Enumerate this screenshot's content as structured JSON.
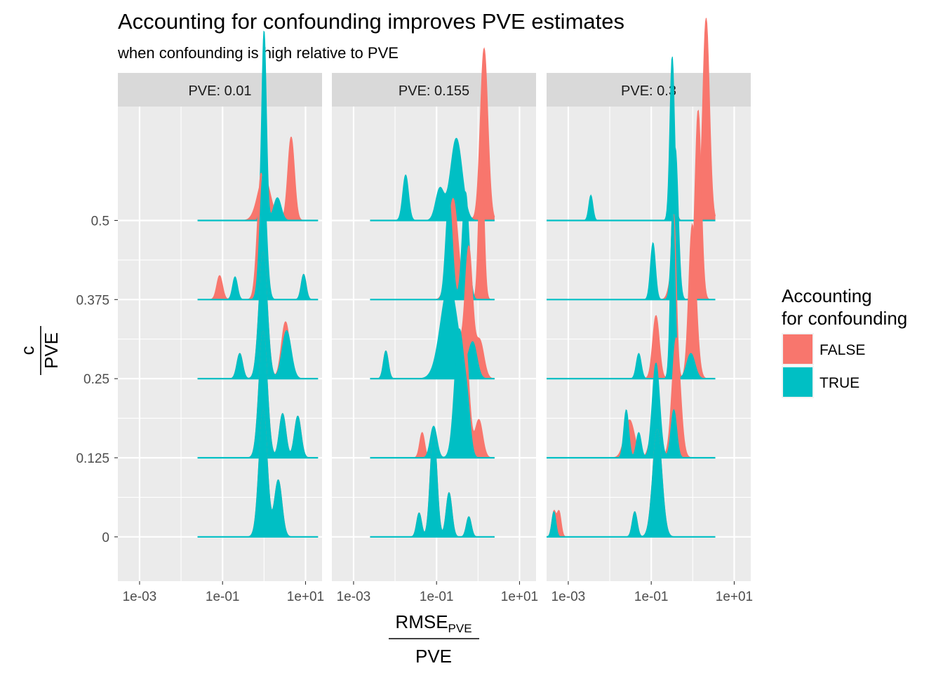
{
  "chart_data": {
    "type": "area",
    "subtype": "ridgeline-density",
    "title": "Accounting for confounding improves PVE estimates",
    "subtitle": "when confounding is high relative to PVE",
    "xlabel": {
      "numerator_main": "RMSE",
      "numerator_sub": "PVE",
      "denominator": "PVE"
    },
    "ylabel": {
      "numerator": "c",
      "denominator": "PVE"
    },
    "x_scale": "log10",
    "x_range": [
      0.0003,
      25
    ],
    "x_ticks": [
      0.001,
      0.1,
      10
    ],
    "x_tick_labels": [
      "1e-03",
      "1e-01",
      "1e+01"
    ],
    "y_range": [
      -0.07,
      0.68
    ],
    "y_ticks": [
      0,
      0.125,
      0.25,
      0.375,
      0.5
    ],
    "y_tick_labels": [
      "0",
      "0.125",
      "0.25",
      "0.375",
      "0.5"
    ],
    "ridge_height": 0.2,
    "grid": true,
    "legend": {
      "title_line1": "Accounting",
      "title_line2": "for confounding",
      "position": "right",
      "entries": [
        {
          "label": "FALSE",
          "color": "#F8766D"
        },
        {
          "label": "TRUE",
          "color": "#00BFC4"
        }
      ]
    },
    "facets": [
      {
        "label": "PVE: 0.01",
        "ridges": [
          {
            "y": 0,
            "x_min": 0.025,
            "x_max": 20,
            "FALSE": [
              [
                0.95,
                1,
                0.1
              ],
              [
                2.2,
                0.45,
                0.09
              ]
            ],
            "TRUE": [
              [
                0.95,
                1,
                0.1
              ],
              [
                2.2,
                0.45,
                0.09
              ]
            ]
          },
          {
            "y": 0.125,
            "x_min": 0.025,
            "x_max": 20,
            "FALSE": [
              [
                0.95,
                1,
                0.1
              ],
              [
                2.8,
                0.35,
                0.08
              ],
              [
                6.5,
                0.33,
                0.08
              ]
            ],
            "TRUE": [
              [
                0.95,
                1,
                0.1
              ],
              [
                2.8,
                0.35,
                0.08
              ],
              [
                6.5,
                0.33,
                0.08
              ]
            ]
          },
          {
            "y": 0.25,
            "x_min": 0.025,
            "x_max": 20,
            "FALSE": [
              [
                0.95,
                1,
                0.1
              ],
              [
                0.26,
                0.2,
                0.07
              ],
              [
                3.3,
                0.45,
                0.1
              ]
            ],
            "TRUE": [
              [
                0.95,
                1,
                0.1
              ],
              [
                0.26,
                0.2,
                0.07
              ],
              [
                3.5,
                0.38,
                0.11
              ]
            ]
          },
          {
            "y": 0.375,
            "x_min": 0.025,
            "x_max": 20,
            "FALSE": [
              [
                0.85,
                1,
                0.09
              ],
              [
                0.085,
                0.19,
                0.07
              ],
              [
                0.2,
                0.17,
                0.06
              ],
              [
                9,
                0.2,
                0.06
              ]
            ],
            "TRUE": [
              [
                0.95,
                1,
                0.08
              ],
              [
                0.2,
                0.18,
                0.06
              ],
              [
                9,
                0.2,
                0.06
              ]
            ]
          },
          {
            "y": 0.5,
            "x_min": 0.025,
            "x_max": 20,
            "FALSE": [
              [
                1.0,
                0.35,
                0.15
              ],
              [
                4.5,
                0.66,
                0.08
              ]
            ],
            "TRUE": [
              [
                1.0,
                1.5,
                0.055
              ],
              [
                2.1,
                0.18,
                0.09
              ]
            ]
          }
        ]
      },
      {
        "label": "PVE: 0.155",
        "ridges": [
          {
            "y": 0,
            "x_min": 0.0025,
            "x_max": 2.5,
            "FALSE": [
              [
                0.085,
                0.85,
                0.08
              ],
              [
                0.038,
                0.19,
                0.06
              ],
              [
                0.2,
                0.35,
                0.07
              ],
              [
                0.6,
                0.16,
                0.06
              ]
            ],
            "TRUE": [
              [
                0.085,
                0.85,
                0.08
              ],
              [
                0.038,
                0.19,
                0.06
              ],
              [
                0.2,
                0.35,
                0.07
              ],
              [
                0.6,
                0.16,
                0.06
              ]
            ]
          },
          {
            "y": 0.125,
            "x_min": 0.0025,
            "x_max": 2.5,
            "FALSE": [
              [
                0.045,
                0.2,
                0.06
              ],
              [
                0.48,
                0.95,
                0.1
              ],
              [
                1.05,
                0.3,
                0.09
              ]
            ],
            "TRUE": [
              [
                0.085,
                0.25,
                0.08
              ],
              [
                0.35,
                1.0,
                0.11
              ],
              [
                0.55,
                0.35,
                0.08
              ]
            ]
          },
          {
            "y": 0.25,
            "x_min": 0.0025,
            "x_max": 2.5,
            "FALSE": [
              [
                0.006,
                0.22,
                0.06
              ],
              [
                0.2,
                0.7,
                0.2
              ],
              [
                0.6,
                1.0,
                0.09
              ],
              [
                1.1,
                0.3,
                0.1
              ]
            ],
            "TRUE": [
              [
                0.006,
                0.22,
                0.06
              ],
              [
                0.2,
                0.75,
                0.2
              ],
              [
                0.75,
                0.28,
                0.1
              ]
            ]
          },
          {
            "y": 0.375,
            "x_min": 0.0025,
            "x_max": 2.5,
            "FALSE": [
              [
                0.25,
                0.8,
                0.12
              ],
              [
                1.2,
                1.3,
                0.06
              ]
            ],
            "TRUE": [
              [
                0.2,
                0.8,
                0.08
              ],
              [
                0.5,
                0.85,
                0.08
              ]
            ]
          },
          {
            "y": 0.5,
            "x_min": 0.0025,
            "x_max": 2.5,
            "FALSE": [
              [
                0.3,
                0.5,
                0.14
              ],
              [
                1.4,
                1.36,
                0.09
              ]
            ],
            "TRUE": [
              [
                0.018,
                0.36,
                0.07
              ],
              [
                0.12,
                0.25,
                0.1
              ],
              [
                0.3,
                0.65,
                0.14
              ]
            ]
          }
        ]
      },
      {
        "label": "PVE: 0.3",
        "ridges": [
          {
            "y": 0,
            "x_min": 0.0003,
            "x_max": 3.5,
            "FALSE": [
              [
                0.00045,
                0.2,
                0.05
              ],
              [
                0.0006,
                0.2,
                0.05
              ],
              [
                0.04,
                0.2,
                0.06
              ],
              [
                0.14,
                0.85,
                0.11
              ]
            ],
            "TRUE": [
              [
                0.00045,
                0.2,
                0.05
              ],
              [
                0.04,
                0.2,
                0.06
              ],
              [
                0.14,
                0.85,
                0.11
              ]
            ]
          },
          {
            "y": 0.125,
            "x_min": 0.0003,
            "x_max": 3.5,
            "FALSE": [
              [
                0.03,
                0.3,
                0.12
              ],
              [
                0.12,
                0.3,
                0.1
              ],
              [
                0.4,
                0.95,
                0.1
              ]
            ],
            "TRUE": [
              [
                0.025,
                0.38,
                0.06
              ],
              [
                0.05,
                0.2,
                0.06
              ],
              [
                0.13,
                0.75,
                0.09
              ],
              [
                0.35,
                0.38,
                0.07
              ]
            ]
          },
          {
            "y": 0.25,
            "x_min": 0.0003,
            "x_max": 3.5,
            "FALSE": [
              [
                0.05,
                0.06,
                0.06
              ],
              [
                0.13,
                0.5,
                0.08
              ],
              [
                0.35,
                1.3,
                0.06
              ],
              [
                0.95,
                1.1,
                0.08
              ],
              [
                1.2,
                0.25,
                0.08
              ]
            ],
            "TRUE": [
              [
                0.05,
                0.2,
                0.06
              ],
              [
                0.33,
                1.35,
                0.055
              ],
              [
                0.9,
                0.2,
                0.1
              ]
            ]
          },
          {
            "y": 0.375,
            "x_min": 0.0003,
            "x_max": 3.5,
            "FALSE": [
              [
                0.35,
                0.3,
                0.09
              ],
              [
                1.35,
                1.5,
                0.075
              ]
            ],
            "TRUE": [
              [
                0.11,
                0.45,
                0.06
              ],
              [
                0.38,
                1.2,
                0.07
              ]
            ]
          },
          {
            "y": 0.5,
            "x_min": 0.0003,
            "x_max": 3.5,
            "FALSE": [
              [
                0.34,
                0.25,
                0.06
              ],
              [
                2.1,
                1.6,
                0.08
              ]
            ],
            "TRUE": [
              [
                0.0035,
                0.2,
                0.05
              ],
              [
                0.32,
                1.3,
                0.055
              ]
            ]
          }
        ]
      }
    ]
  }
}
